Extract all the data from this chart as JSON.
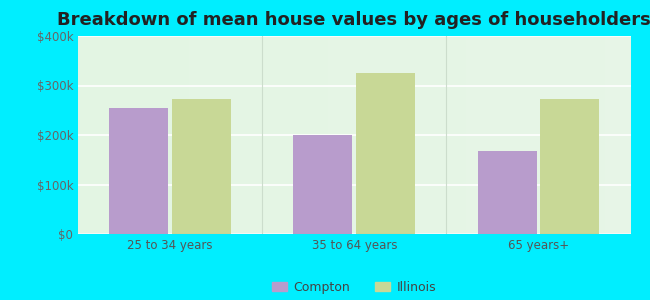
{
  "title": "Breakdown of mean house values by ages of householders",
  "categories": [
    "25 to 34 years",
    "35 to 64 years",
    "65 years+"
  ],
  "compton_values": [
    255000,
    200000,
    168000
  ],
  "illinois_values": [
    272000,
    325000,
    272000
  ],
  "compton_color": "#b89ccc",
  "illinois_color": "#c8d896",
  "ylim": [
    0,
    400000
  ],
  "yticks": [
    0,
    100000,
    200000,
    300000,
    400000
  ],
  "ytick_labels": [
    "$0",
    "$100k",
    "$200k",
    "$300k",
    "$400k"
  ],
  "bar_width": 0.32,
  "legend_labels": [
    "Compton",
    "Illinois"
  ],
  "title_fontsize": 13,
  "tick_fontsize": 8.5,
  "legend_fontsize": 9,
  "outer_bg_color": "#00eeff",
  "plot_bg_color": "#e8f5e8"
}
